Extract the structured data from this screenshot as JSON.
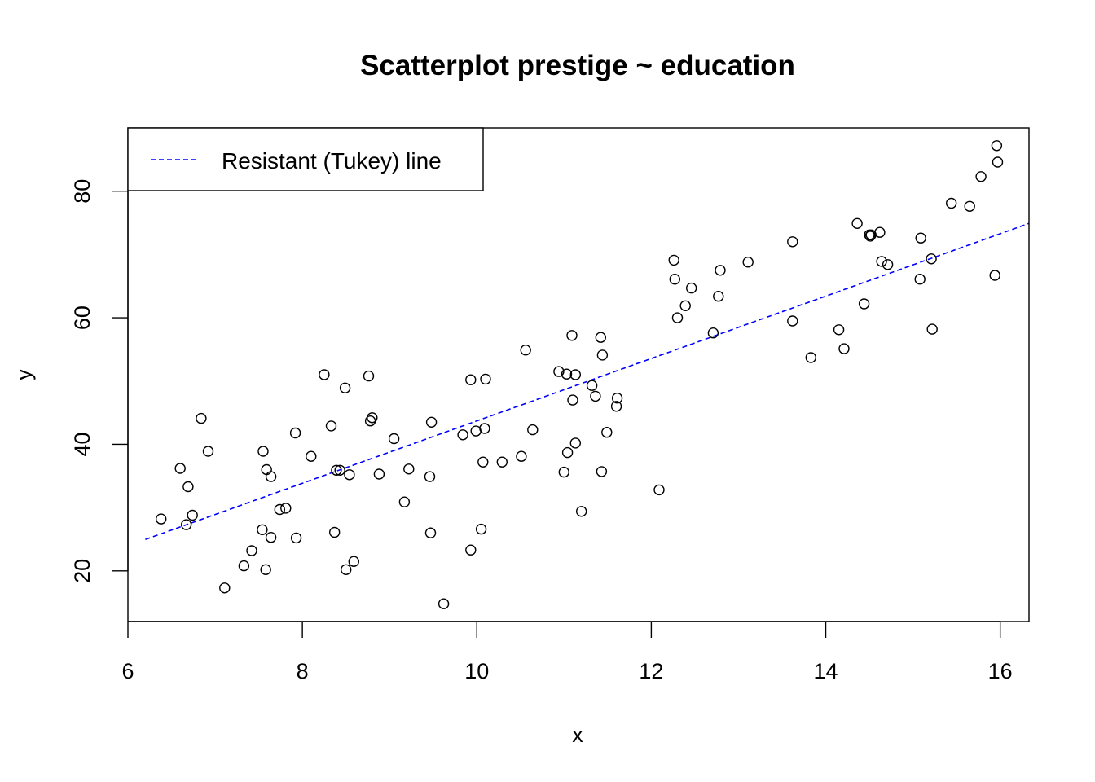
{
  "chart_data": {
    "type": "scatter",
    "title": "Scatterplot prestige ~ education",
    "xlabel": "x",
    "ylabel": "y",
    "xlim": [
      6,
      16.33
    ],
    "ylim": [
      12,
      90
    ],
    "xticks": [
      "6",
      "8",
      "10",
      "12",
      "14",
      "16"
    ],
    "yticks": [
      "20",
      "40",
      "60",
      "80"
    ],
    "grid": false,
    "legend": {
      "position": "top-left",
      "entries": [
        {
          "label": "Resistant (Tukey) line",
          "color": "#0000ff",
          "style": "dashed"
        }
      ]
    },
    "line": {
      "name": "Resistant (Tukey) line",
      "intercept": -5.6,
      "slope": 4.93,
      "color": "#0000ff"
    },
    "points": [
      [
        6.38,
        28.2
      ],
      [
        6.6,
        36.2
      ],
      [
        6.67,
        27.3
      ],
      [
        6.69,
        33.3
      ],
      [
        6.74,
        28.8
      ],
      [
        6.84,
        44.1
      ],
      [
        6.92,
        38.9
      ],
      [
        7.11,
        17.3
      ],
      [
        7.33,
        20.8
      ],
      [
        7.42,
        23.2
      ],
      [
        7.54,
        26.5
      ],
      [
        7.55,
        38.9
      ],
      [
        7.58,
        20.2
      ],
      [
        7.59,
        36.0
      ],
      [
        7.64,
        25.3
      ],
      [
        7.64,
        34.9
      ],
      [
        7.74,
        29.7
      ],
      [
        7.81,
        29.9
      ],
      [
        7.92,
        41.8
      ],
      [
        7.93,
        25.2
      ],
      [
        8.1,
        38.1
      ],
      [
        8.25,
        51.0
      ],
      [
        8.33,
        42.9
      ],
      [
        8.37,
        26.1
      ],
      [
        8.39,
        35.9
      ],
      [
        8.43,
        35.9
      ],
      [
        8.49,
        48.9
      ],
      [
        8.5,
        20.2
      ],
      [
        8.54,
        35.2
      ],
      [
        8.59,
        21.5
      ],
      [
        8.76,
        50.8
      ],
      [
        8.78,
        43.7
      ],
      [
        8.8,
        44.2
      ],
      [
        8.88,
        35.3
      ],
      [
        9.05,
        40.9
      ],
      [
        9.17,
        30.9
      ],
      [
        9.22,
        36.1
      ],
      [
        9.46,
        34.9
      ],
      [
        9.47,
        26.0
      ],
      [
        9.48,
        43.5
      ],
      [
        9.62,
        14.8
      ],
      [
        9.84,
        41.5
      ],
      [
        9.93,
        50.2
      ],
      [
        9.93,
        23.3
      ],
      [
        9.99,
        42.1
      ],
      [
        10.05,
        26.6
      ],
      [
        10.07,
        37.2
      ],
      [
        10.09,
        42.5
      ],
      [
        10.1,
        50.3
      ],
      [
        10.29,
        37.2
      ],
      [
        10.51,
        38.1
      ],
      [
        10.56,
        54.9
      ],
      [
        10.64,
        42.3
      ],
      [
        10.94,
        51.5
      ],
      [
        11.0,
        35.6
      ],
      [
        11.03,
        51.1
      ],
      [
        11.04,
        38.7
      ],
      [
        11.09,
        57.2
      ],
      [
        11.1,
        47.0
      ],
      [
        11.13,
        51.0
      ],
      [
        11.13,
        40.2
      ],
      [
        11.2,
        29.4
      ],
      [
        11.32,
        49.3
      ],
      [
        11.36,
        47.6
      ],
      [
        11.42,
        56.9
      ],
      [
        11.43,
        35.7
      ],
      [
        11.44,
        54.1
      ],
      [
        11.49,
        41.9
      ],
      [
        11.6,
        46.0
      ],
      [
        11.61,
        47.3
      ],
      [
        12.09,
        32.8
      ],
      [
        12.26,
        69.1
      ],
      [
        12.27,
        66.1
      ],
      [
        12.3,
        60.0
      ],
      [
        12.39,
        61.9
      ],
      [
        12.46,
        64.7
      ],
      [
        12.71,
        57.6
      ],
      [
        12.77,
        63.4
      ],
      [
        12.79,
        67.5
      ],
      [
        13.11,
        68.8
      ],
      [
        13.62,
        72.0
      ],
      [
        13.62,
        59.5
      ],
      [
        13.83,
        53.7
      ],
      [
        14.15,
        58.1
      ],
      [
        14.21,
        55.1
      ],
      [
        14.36,
        74.9
      ],
      [
        14.44,
        62.2
      ],
      [
        14.5,
        73.1
      ],
      [
        14.51,
        72.9
      ],
      [
        14.52,
        73.1
      ],
      [
        14.62,
        73.5
      ],
      [
        14.64,
        68.9
      ],
      [
        14.71,
        68.4
      ],
      [
        15.08,
        66.1
      ],
      [
        15.09,
        72.6
      ],
      [
        15.21,
        69.3
      ],
      [
        15.22,
        58.2
      ],
      [
        15.44,
        78.1
      ],
      [
        15.65,
        77.6
      ],
      [
        15.78,
        82.3
      ],
      [
        15.94,
        66.7
      ],
      [
        15.96,
        87.2
      ],
      [
        15.97,
        84.6
      ]
    ]
  }
}
